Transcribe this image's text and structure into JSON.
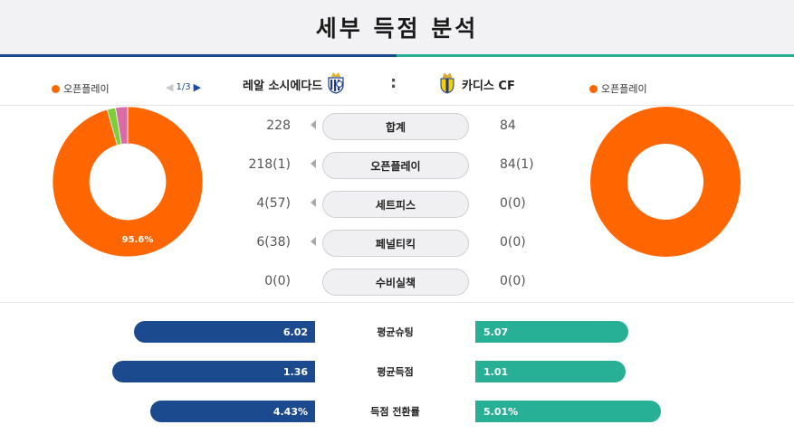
{
  "page": {
    "title": "세부 득점 분석"
  },
  "colors": {
    "home": "#1b4a8f",
    "away": "#27b096",
    "open_play": "#ff6600",
    "set_piece": "#7ccf3a",
    "penalty": "#d96ba6"
  },
  "legend": {
    "home_label": "오픈플레이",
    "away_label": "오픈플레이"
  },
  "pager": {
    "text": "1/3",
    "prev_icon": "triangle-left-icon",
    "next_icon": "triangle-right-icon"
  },
  "teams": {
    "home": {
      "name": "레알 소시에다드",
      "crest_icon": "real-sociedad-crest-icon"
    },
    "separator": ":",
    "away": {
      "name": "카디스 CF",
      "crest_icon": "cadiz-crest-icon"
    }
  },
  "chart_data": [
    {
      "type": "pie",
      "team": "레알 소시에다드",
      "categories": [
        "오픈플레이",
        "세트피스",
        "페널티킥"
      ],
      "values": [
        95.6,
        1.8,
        2.6
      ],
      "data_label": "95.6%"
    },
    {
      "type": "pie",
      "team": "카디스 CF",
      "categories": [
        "오픈플레이"
      ],
      "values": [
        100
      ]
    }
  ],
  "stats": [
    {
      "label": "합계",
      "home": "228",
      "away": "84"
    },
    {
      "label": "오픈플레이",
      "home": "218(1)",
      "away": "84(1)"
    },
    {
      "label": "세트피스",
      "home": "4(57)",
      "away": "0(0)"
    },
    {
      "label": "페널티킥",
      "home": "6(38)",
      "away": "0(0)"
    },
    {
      "label": "수비실책",
      "home": "0(0)",
      "away": "0(0)"
    }
  ],
  "averages": [
    {
      "label": "평균슈팅",
      "home": "6.02",
      "away": "5.07",
      "home_fraction": 0.77,
      "away_fraction": 0.65
    },
    {
      "label": "평균득점",
      "home": "1.36",
      "away": "1.01",
      "home_fraction": 0.86,
      "away_fraction": 0.64
    },
    {
      "label": "득점 전환률",
      "home": "4.43%",
      "away": "5.01%",
      "home_fraction": 0.7,
      "away_fraction": 0.79
    }
  ]
}
